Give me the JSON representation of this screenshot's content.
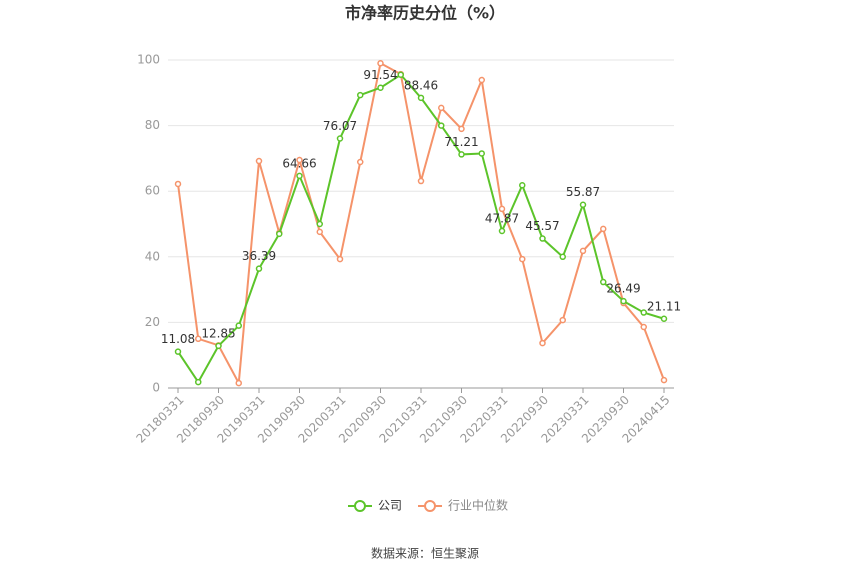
{
  "chart_data": {
    "type": "line",
    "title": "市净率历史分位（%）",
    "categories": [
      "20180331",
      null,
      "20180930",
      null,
      "20190331",
      null,
      "20190930",
      null,
      "20200331",
      null,
      "20200930",
      null,
      "20210331",
      null,
      "20210930",
      null,
      "20220331",
      null,
      "20220930",
      null,
      "20230331",
      null,
      "20230930",
      null,
      "20240415"
    ],
    "series": [
      {
        "name": "公司",
        "color": "#5cc42a",
        "values": [
          11.08,
          1.8,
          12.85,
          19,
          36.39,
          47,
          64.66,
          50,
          76.07,
          89.3,
          91.54,
          95.5,
          88.46,
          80,
          71.21,
          71.5,
          47.87,
          61.8,
          45.57,
          40,
          55.87,
          32.3,
          26.49,
          23,
          21.11
        ],
        "value_labels": [
          "11.08",
          null,
          "12.85",
          null,
          "36.39",
          null,
          "64.66",
          null,
          "76.07",
          null,
          "91.54",
          null,
          "88.46",
          null,
          "71.21",
          null,
          "47.87",
          null,
          "45.57",
          null,
          "55.87",
          null,
          "26.49",
          null,
          "21.11"
        ]
      },
      {
        "name": "行业中位数",
        "color": "#f5936a",
        "values": [
          62.2,
          15,
          13,
          1.5,
          69.2,
          47.3,
          69.5,
          47.6,
          39.3,
          68.9,
          99,
          95.7,
          63.1,
          85.4,
          79,
          93.9,
          54.6,
          39.3,
          13.7,
          20.7,
          41.8,
          48.5,
          25.9,
          18.6,
          2.4
        ]
      }
    ],
    "ylim": [
      0,
      100
    ],
    "yticks": [
      0,
      20,
      40,
      60,
      80,
      100
    ],
    "grid": true,
    "source": "数据来源：恒生聚源"
  }
}
